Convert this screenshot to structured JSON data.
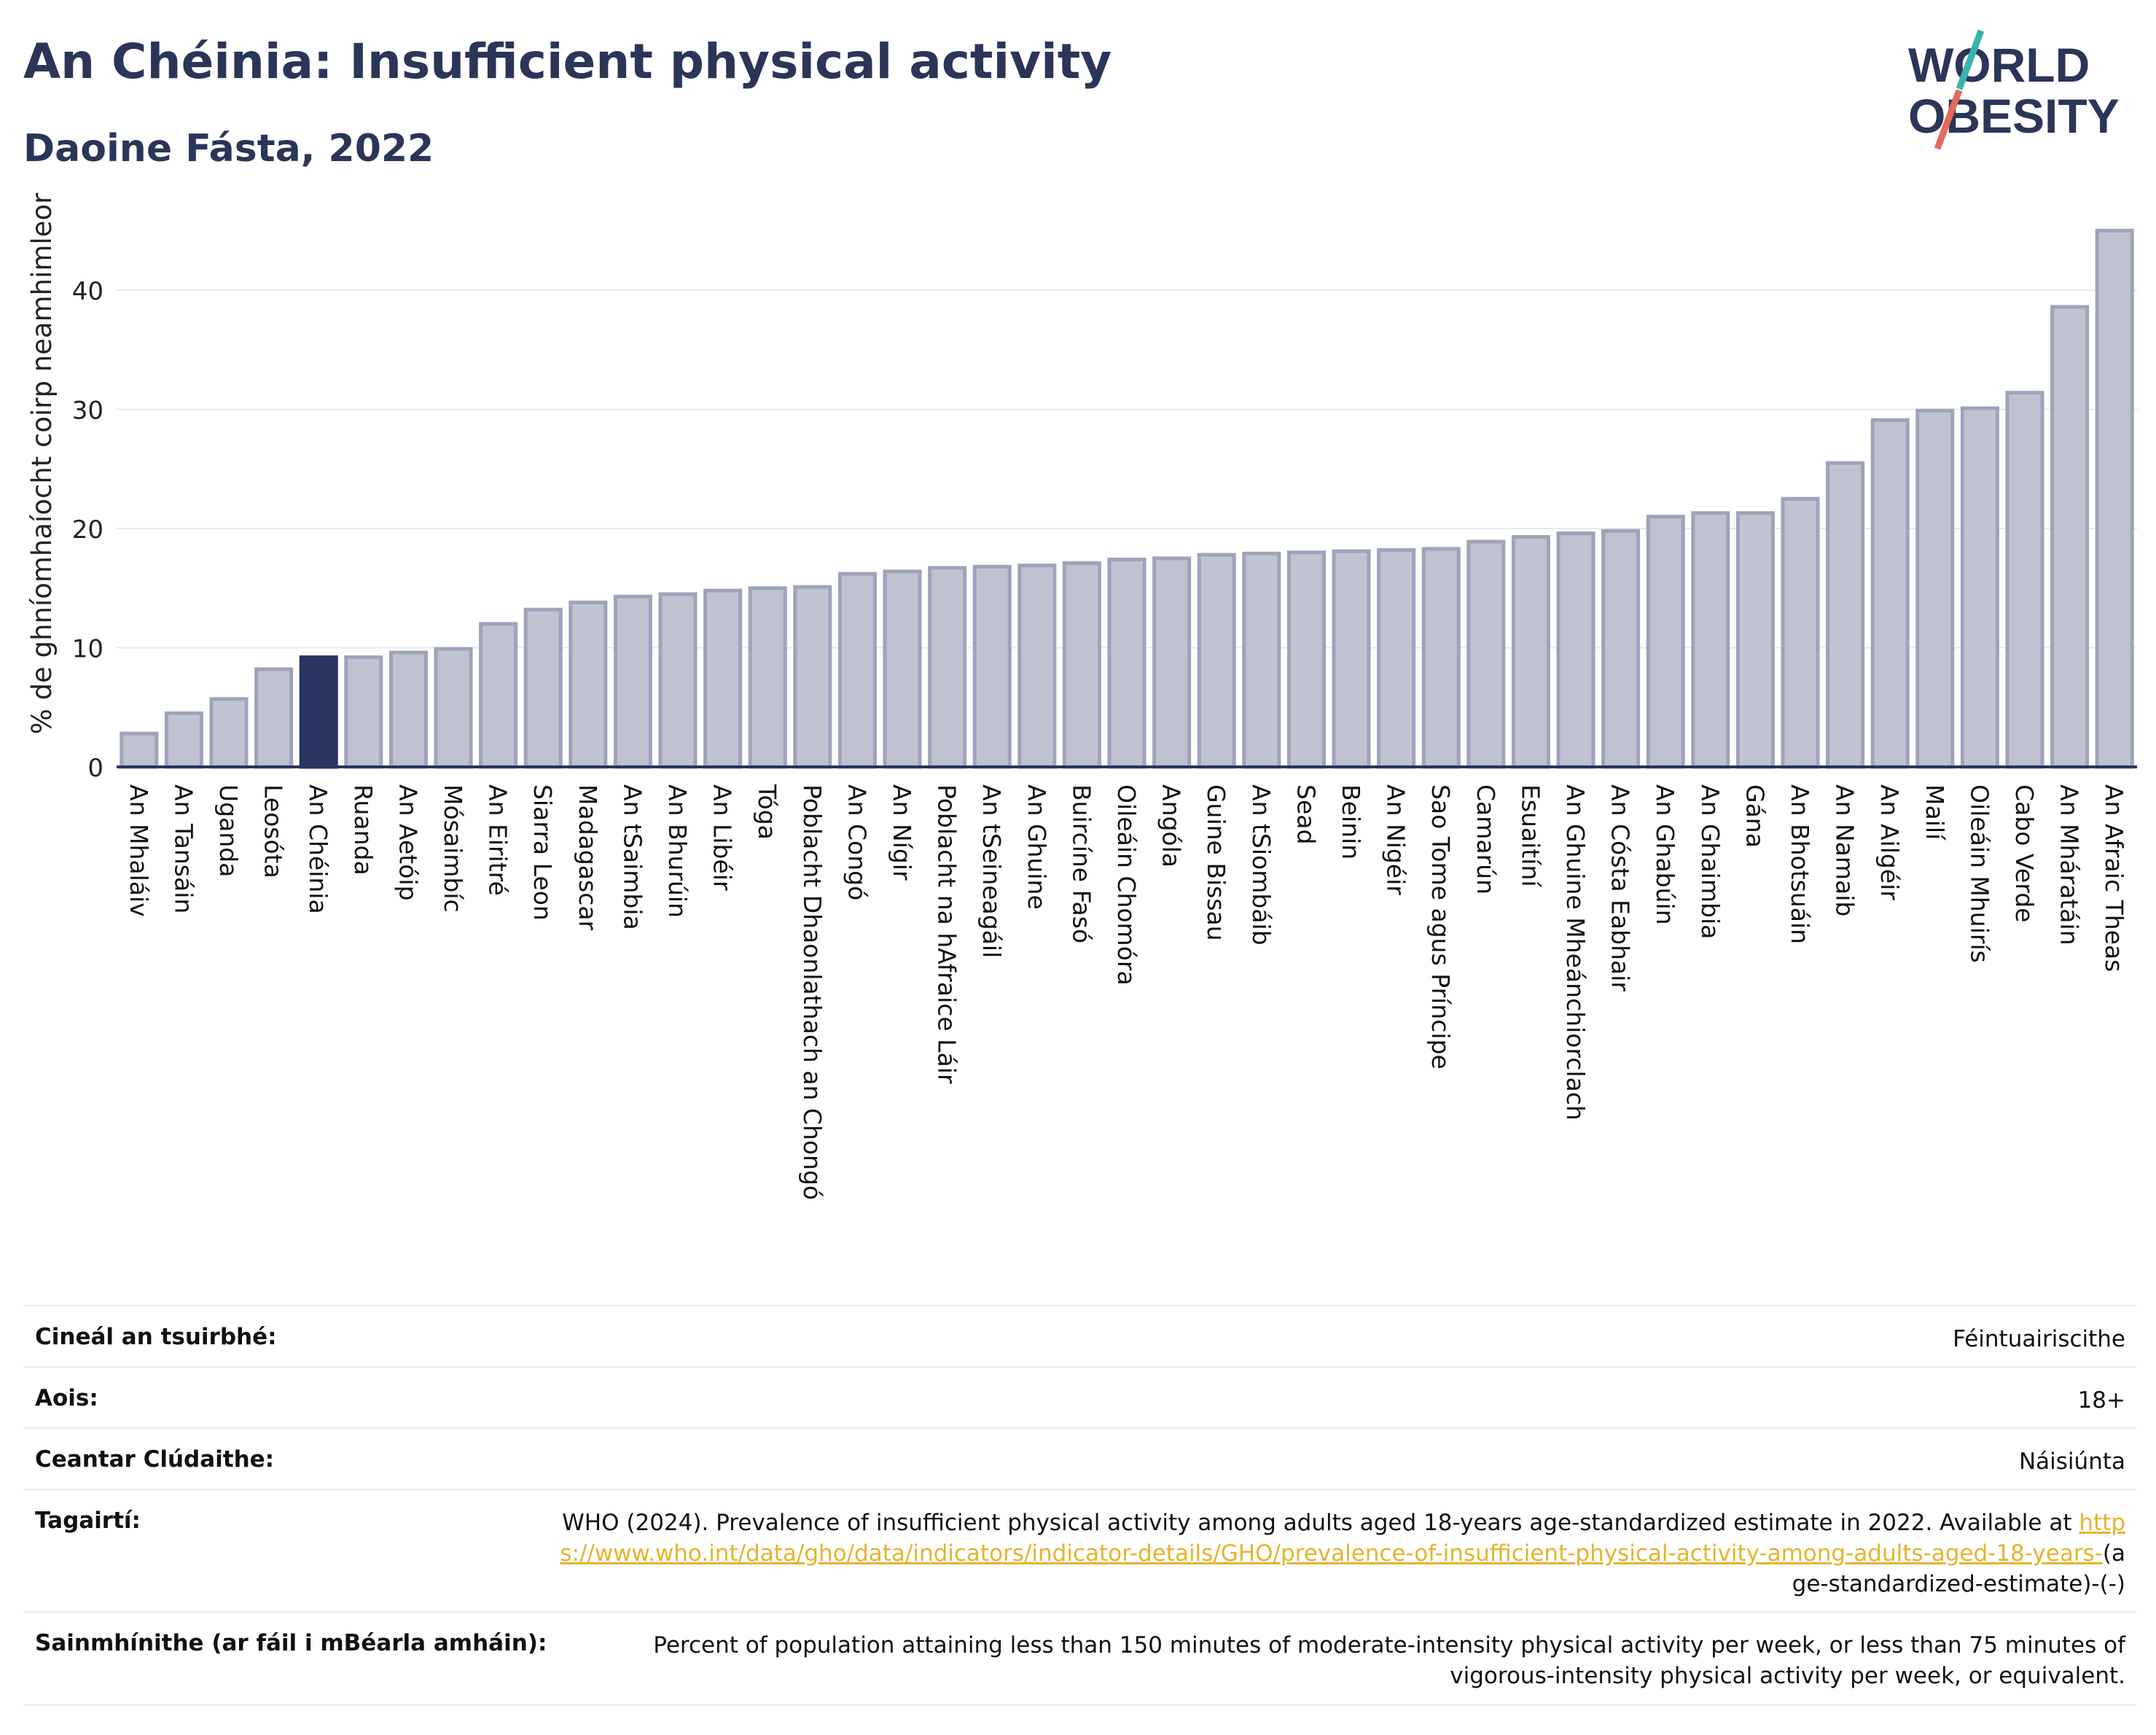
{
  "header": {
    "title": "An Chéinia: Insufficient physical activity",
    "subtitle": "Daoine Fásta, 2022"
  },
  "logo": {
    "line1": "WORLD",
    "line2": "OBESITY",
    "icon": "world-obesity-logo"
  },
  "colors": {
    "highlight": "#2a3560",
    "bar": "#bfc3d0",
    "bar_edge": "#9ea3ba",
    "text": "#2a3558",
    "link": "#e6b32e",
    "logo_teal": "#3ab3b0",
    "logo_coral": "#e46a5a"
  },
  "chart_data": {
    "type": "bar",
    "ylabel": "% de ghníomhaíocht coirp neamhimleor",
    "ylim": [
      0,
      46
    ],
    "yticks": [
      0,
      10,
      20,
      30,
      40
    ],
    "grid": true,
    "highlight": "An Chéinia",
    "categories": [
      "An Mhaláiv",
      "An Tansáin",
      "Uganda",
      "Leosóta",
      "An Chéinia",
      "Ruanda",
      "An Aetóip",
      "Mósaimbíc",
      "An Eiritré",
      "Siarra Leon",
      "Madagascar",
      "An tSaimbia",
      "An Bhurúin",
      "An Libéir",
      "Tóga",
      "Poblacht Dhaonlathach an Chongó",
      "An Congó",
      "An Nígir",
      "Poblacht na hAfraice Láir",
      "An tSeineagáil",
      "An Ghuine",
      "Buircíne Fasó",
      "Oileáin Chomóra",
      "Angóla",
      "Guine Bissau",
      "An tSiombáib",
      "Sead",
      "Beinin",
      "An Nigéir",
      "Sao Tome agus Príncipe",
      "Camarún",
      "Esuaitíní",
      "An Ghuine Mheánchiorclach",
      "An Cósta Eabhair",
      "An Ghabúin",
      "An Ghaimbia",
      "Gána",
      "An Bhotsuáin",
      "An Namaib",
      "An Ailgéir",
      "Mailí",
      "Oileáin Mhuirís",
      "Cabo Verde",
      "An Mháratáin",
      "An Afraic Theas"
    ],
    "values": [
      2.8,
      4.5,
      5.7,
      8.2,
      9.2,
      9.2,
      9.6,
      9.9,
      12.0,
      13.2,
      13.8,
      14.3,
      14.5,
      14.8,
      15.0,
      15.1,
      16.2,
      16.4,
      16.7,
      16.8,
      16.9,
      17.1,
      17.4,
      17.5,
      17.8,
      17.9,
      18.0,
      18.1,
      18.2,
      18.3,
      18.9,
      19.3,
      19.6,
      19.8,
      21.0,
      21.3,
      21.3,
      22.5,
      25.5,
      29.1,
      29.9,
      30.1,
      31.4,
      38.6,
      45.0
    ]
  },
  "details": [
    {
      "label": "Cineál an tsuirbhé:",
      "value": "Féintuairiscithe"
    },
    {
      "label": "Aois:",
      "value": "18+"
    },
    {
      "label": "Ceantar Clúdaithe:",
      "value": "Náisiúnta"
    },
    {
      "label": "Tagairtí:",
      "value": "WHO (2024). Prevalence of insufficient physical activity among adults aged 18-years age-standardized estimate in 2022. Available at",
      "link": "https://www.who.int/data/gho/data/indicators/indicator-details/GHO/prevalence-of-insufficient-physical-activity-among-adults-aged-18-years-",
      "suffix": "(age-standardized-estimate)-(-)"
    },
    {
      "label": "Sainmhínithe (ar fáil i mBéarla amháin):",
      "value": "Percent of population attaining less than 150 minutes of moderate-intensity physical activity per week, or less than 75 minutes of vigorous-intensity physical activity per week, or equivalent."
    }
  ]
}
